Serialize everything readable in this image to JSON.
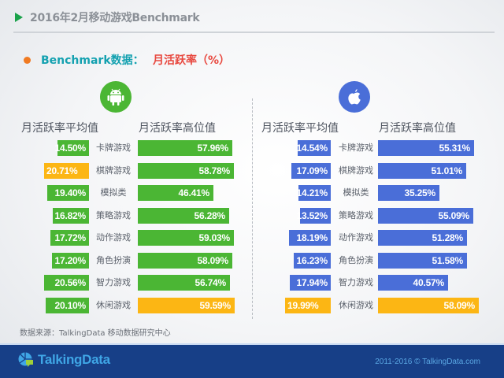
{
  "header": {
    "title": "2016年2月移动游戏Benchmark"
  },
  "subtitle": {
    "part1": "Benchmark数据：",
    "part2": "月活跃率（%）"
  },
  "source": "数据来源：TalkingData 移动数据研究中心",
  "footer": {
    "logo": "TalkingData",
    "copyright": "2011-2016 © TalkingData.com"
  },
  "colors": {
    "android": "#4bb634",
    "ios": "#4a6ed8",
    "highlight": "#fcb614"
  },
  "panels": [
    {
      "platform": "Android",
      "icon": "android-icon",
      "avg_header": "月活跃率平均值",
      "high_header": "月活跃率高位值",
      "rows": [
        {
          "category": "卡牌游戏",
          "avg": "14.50%",
          "high": "57.96%"
        },
        {
          "category": "棋牌游戏",
          "avg": "20.71%",
          "high": "58.78%"
        },
        {
          "category": "模拟类",
          "avg": "19.40%",
          "high": "46.41%"
        },
        {
          "category": "策略游戏",
          "avg": "16.82%",
          "high": "56.28%"
        },
        {
          "category": "动作游戏",
          "avg": "17.72%",
          "high": "59.03%"
        },
        {
          "category": "角色扮演",
          "avg": "17.20%",
          "high": "58.09%"
        },
        {
          "category": "智力游戏",
          "avg": "20.56%",
          "high": "56.74%"
        },
        {
          "category": "休闲游戏",
          "avg": "20.10%",
          "high": "59.59%"
        }
      ]
    },
    {
      "platform": "iOS",
      "icon": "apple-icon",
      "avg_header": "月活跃率平均值",
      "high_header": "月活跃率高位值",
      "rows": [
        {
          "category": "卡牌游戏",
          "avg": "14.54%",
          "high": "55.31%"
        },
        {
          "category": "棋牌游戏",
          "avg": "17.09%",
          "high": "51.01%"
        },
        {
          "category": "模拟类",
          "avg": "14.21%",
          "high": "35.25%"
        },
        {
          "category": "策略游戏",
          "avg": "13.52%",
          "high": "55.09%"
        },
        {
          "category": "动作游戏",
          "avg": "18.19%",
          "high": "51.28%"
        },
        {
          "category": "角色扮演",
          "avg": "16.23%",
          "high": "51.58%"
        },
        {
          "category": "智力游戏",
          "avg": "17.94%",
          "high": "40.57%"
        },
        {
          "category": "休闲游戏",
          "avg": "19.99%",
          "high": "58.09%"
        }
      ]
    }
  ],
  "chart_data": [
    {
      "type": "bar",
      "title": "Android 月活跃率（%）",
      "categories": [
        "卡牌游戏",
        "棋牌游戏",
        "模拟类",
        "策略游戏",
        "动作游戏",
        "角色扮演",
        "智力游戏",
        "休闲游戏"
      ],
      "series": [
        {
          "name": "月活跃率平均值",
          "values": [
            14.5,
            20.71,
            19.4,
            16.82,
            17.72,
            17.2,
            20.56,
            20.1
          ],
          "highlight_index": 1
        },
        {
          "name": "月活跃率高位值",
          "values": [
            57.96,
            58.78,
            46.41,
            56.28,
            59.03,
            58.09,
            56.74,
            59.59
          ],
          "highlight_index": 7
        }
      ],
      "orientation": "horizontal",
      "grid": false
    },
    {
      "type": "bar",
      "title": "iOS 月活跃率（%）",
      "categories": [
        "卡牌游戏",
        "棋牌游戏",
        "模拟类",
        "策略游戏",
        "动作游戏",
        "角色扮演",
        "智力游戏",
        "休闲游戏"
      ],
      "series": [
        {
          "name": "月活跃率平均值",
          "values": [
            14.54,
            17.09,
            14.21,
            13.52,
            18.19,
            16.23,
            17.94,
            19.99
          ],
          "highlight_index": 7
        },
        {
          "name": "月活跃率高位值",
          "values": [
            55.31,
            51.01,
            35.25,
            55.09,
            51.28,
            51.58,
            40.57,
            58.09
          ],
          "highlight_index": 7
        }
      ],
      "orientation": "horizontal",
      "grid": false
    }
  ]
}
